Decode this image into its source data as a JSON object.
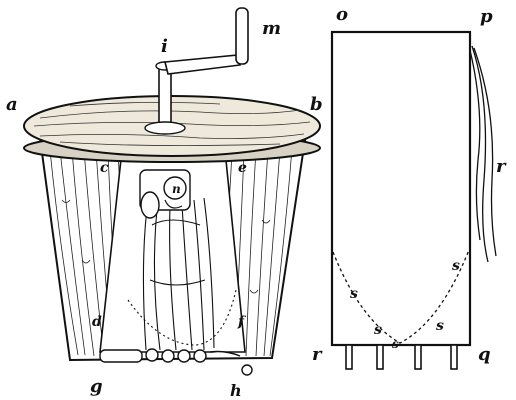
{
  "figure": {
    "churn": {
      "labels": {
        "a": "a",
        "b": "b",
        "c": "c",
        "d": "d",
        "e": "e",
        "f": "f",
        "g": "g",
        "h": "h",
        "i": "i",
        "m": "m",
        "n": "n"
      }
    },
    "section": {
      "labels": {
        "o": "o",
        "p": "p",
        "q": "q",
        "r_right": "r",
        "r_bottom": "r",
        "s_left_top": "s",
        "s_left_mid": "s",
        "s_bottom": "s",
        "s_right_top": "s",
        "s_right_low": "s"
      }
    }
  }
}
